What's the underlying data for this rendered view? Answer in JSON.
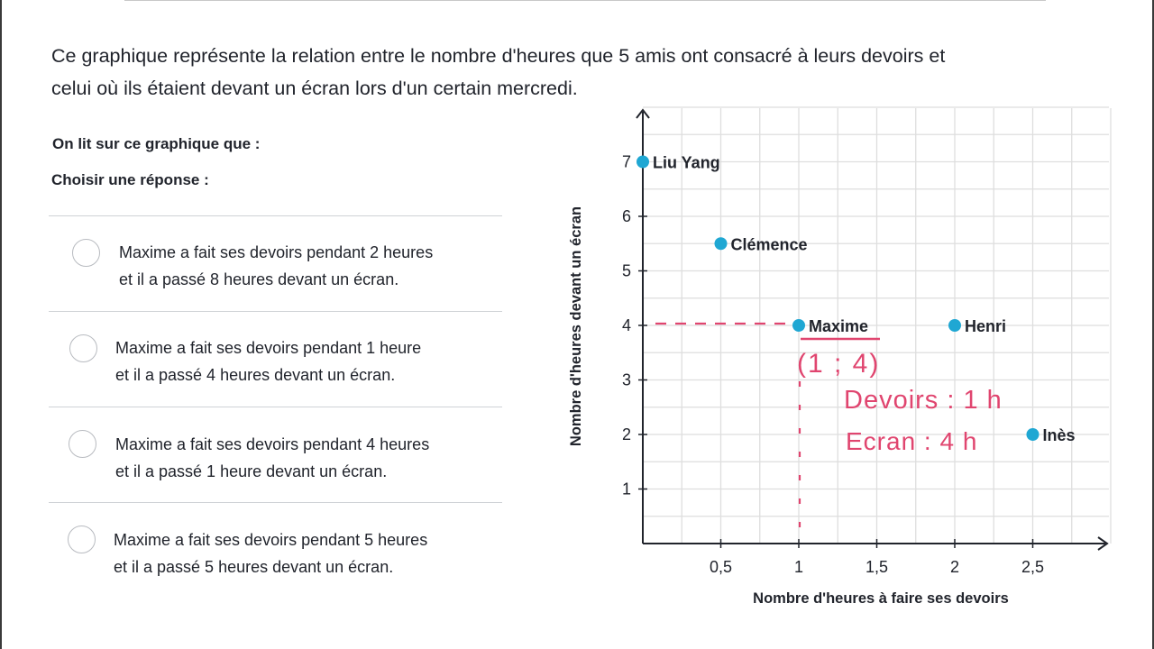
{
  "question": {
    "intro_line1": "Ce graphique représente la relation entre le nombre d'heures que 5 amis ont consacré à leurs devoirs et",
    "intro_line2": "celui où ils étaient devant un écran lors d'un certain mercredi.",
    "prompt": "On lit sur ce graphique que :",
    "choose": "Choisir une réponse :"
  },
  "choices": [
    {
      "line1": "Maxime a fait ses devoirs pendant 2 heures",
      "line2": "et il a passé 8 heures devant un écran."
    },
    {
      "line1": "Maxime a fait ses devoirs pendant 1 heure",
      "line2": "et il a passé 4 heures devant un écran."
    },
    {
      "line1": "Maxime a fait ses devoirs pendant 4 heures",
      "line2": "et il a passé 1 heure devant un écran."
    },
    {
      "line1": "Maxime a fait ses devoirs pendant 5 heures",
      "line2": "et il a passé 5 heures devant un écran."
    }
  ],
  "chart_data": {
    "type": "scatter",
    "xlabel": "Nombre d'heures à faire ses devoirs",
    "ylabel": "Nombre d'heures devant un écran",
    "xlim": [
      0,
      3
    ],
    "ylim": [
      0,
      8
    ],
    "x_ticks": [
      {
        "value": 0.5,
        "label": "0,5"
      },
      {
        "value": 1,
        "label": "1"
      },
      {
        "value": 1.5,
        "label": "1,5"
      },
      {
        "value": 2,
        "label": "2"
      },
      {
        "value": 2.5,
        "label": "2,5"
      }
    ],
    "y_ticks": [
      {
        "value": 1,
        "label": "1"
      },
      {
        "value": 2,
        "label": "2"
      },
      {
        "value": 3,
        "label": "3"
      },
      {
        "value": 4,
        "label": "4"
      },
      {
        "value": 5,
        "label": "5"
      },
      {
        "value": 6,
        "label": "6"
      },
      {
        "value": 7,
        "label": "7"
      }
    ],
    "grid": true,
    "point_color": "#1fa7d3",
    "points": [
      {
        "label": "Liu Yang",
        "x": 0,
        "y": 7
      },
      {
        "label": "Clémence",
        "x": 0.5,
        "y": 5.5
      },
      {
        "label": "Maxime",
        "x": 1,
        "y": 4
      },
      {
        "label": "Henri",
        "x": 2,
        "y": 4
      },
      {
        "label": "Inès",
        "x": 2.5,
        "y": 2
      }
    ]
  },
  "annotations": {
    "color": "#e0456f",
    "coord": "(1 ; 4)",
    "devoirs": "Devoirs : 1 h",
    "ecran": "Ecran : 4 h"
  }
}
